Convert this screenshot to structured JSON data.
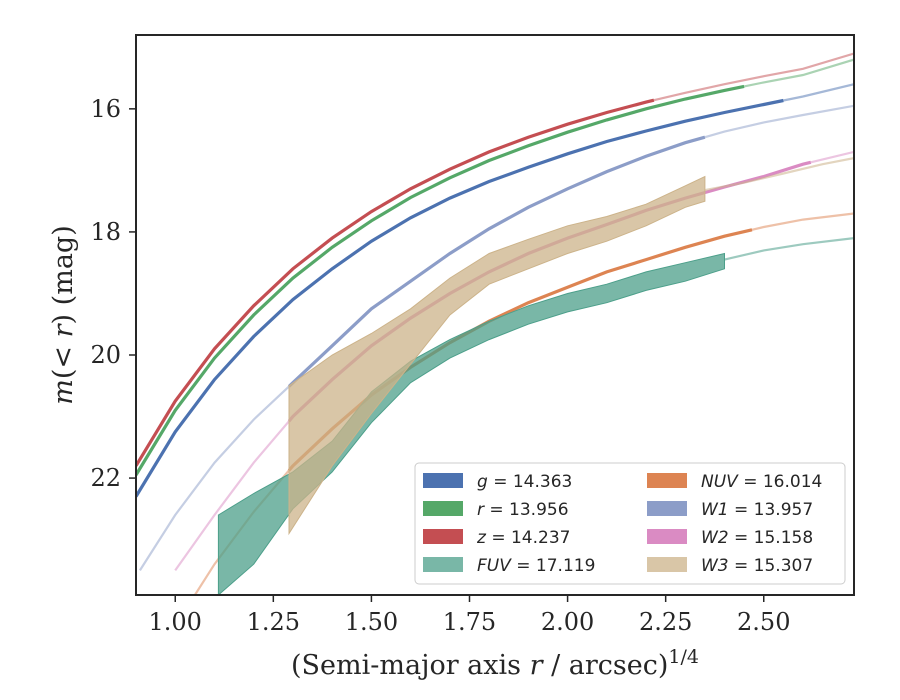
{
  "chart_data": {
    "type": "line",
    "xlabel": "(Semi-major axis r / arcsec)^{1/4}",
    "ylabel": "m(< r) (mag)",
    "xlim": [
      0.9,
      2.73
    ],
    "ylim": [
      23.9,
      14.8
    ],
    "y_inverted": true,
    "xticks": [
      "1.00",
      "1.25",
      "1.50",
      "1.75",
      "2.00",
      "2.25",
      "2.50"
    ],
    "xtick_values": [
      1.0,
      1.25,
      1.5,
      1.75,
      2.0,
      2.25,
      2.5
    ],
    "yticks": [
      "16",
      "18",
      "20",
      "22"
    ],
    "ytick_values": [
      16,
      18,
      20,
      22
    ],
    "grid": false,
    "legend_position": "lower-right",
    "series": [
      {
        "name": "g = 14.363",
        "label_prefix": "g",
        "label_value": "14.363",
        "color": "#4c72b0",
        "kind": "line",
        "x": [
          0.9,
          1.0,
          1.1,
          1.2,
          1.3,
          1.4,
          1.5,
          1.6,
          1.7,
          1.8,
          1.9,
          2.0,
          2.1,
          2.2,
          2.3,
          2.4,
          2.5,
          2.6,
          2.73
        ],
        "y": [
          22.3,
          21.25,
          20.4,
          19.7,
          19.1,
          18.6,
          18.15,
          17.77,
          17.45,
          17.18,
          16.95,
          16.73,
          16.53,
          16.36,
          16.2,
          16.06,
          15.93,
          15.8,
          15.6
        ],
        "solid_max_x": 2.55
      },
      {
        "name": "r = 13.956",
        "label_prefix": "r",
        "label_value": "13.956",
        "color": "#55a868",
        "kind": "line",
        "x": [
          0.9,
          1.0,
          1.1,
          1.2,
          1.3,
          1.4,
          1.5,
          1.6,
          1.7,
          1.8,
          1.9,
          2.0,
          2.1,
          2.2,
          2.3,
          2.4,
          2.5,
          2.6,
          2.73
        ],
        "y": [
          21.95,
          20.9,
          20.05,
          19.35,
          18.75,
          18.25,
          17.82,
          17.44,
          17.12,
          16.84,
          16.6,
          16.38,
          16.18,
          16.0,
          15.84,
          15.7,
          15.57,
          15.45,
          15.2
        ],
        "solid_max_x": 2.45
      },
      {
        "name": "z = 14.237",
        "label_prefix": "z",
        "label_value": "14.237",
        "color": "#c44e52",
        "kind": "line",
        "x": [
          0.9,
          1.0,
          1.1,
          1.2,
          1.3,
          1.4,
          1.5,
          1.6,
          1.7,
          1.8,
          1.9,
          2.0,
          2.1,
          2.2,
          2.3,
          2.4,
          2.5,
          2.6,
          2.73
        ],
        "y": [
          21.8,
          20.75,
          19.9,
          19.2,
          18.6,
          18.1,
          17.67,
          17.3,
          16.98,
          16.7,
          16.46,
          16.25,
          16.06,
          15.89,
          15.74,
          15.6,
          15.47,
          15.35,
          15.1
        ],
        "solid_max_x": 2.22
      },
      {
        "name": "FUV = 17.119",
        "label_prefix": "FUV",
        "label_value": "17.119",
        "color": "#4c9f8a",
        "kind": "band",
        "x": [
          1.11,
          1.2,
          1.3,
          1.4,
          1.5,
          1.6,
          1.7,
          1.8,
          1.9,
          2.0,
          2.1,
          2.2,
          2.3,
          2.4
        ],
        "y_upper": [
          22.6,
          22.25,
          21.9,
          21.4,
          20.6,
          20.1,
          19.75,
          19.45,
          19.2,
          19.0,
          18.85,
          18.65,
          18.5,
          18.35
        ],
        "y_lower": [
          23.9,
          23.4,
          22.5,
          21.9,
          21.1,
          20.45,
          20.05,
          19.75,
          19.5,
          19.3,
          19.15,
          18.95,
          18.8,
          18.6
        ],
        "ext_x": [
          2.4,
          2.5,
          2.6,
          2.73
        ],
        "ext_y": [
          18.45,
          18.3,
          18.2,
          18.1
        ]
      },
      {
        "name": "NUV = 16.014",
        "label_prefix": "NUV",
        "label_value": "16.014",
        "color": "#dd8452",
        "kind": "line",
        "x": [
          1.05,
          1.1,
          1.2,
          1.3,
          1.4,
          1.5,
          1.6,
          1.7,
          1.8,
          1.9,
          2.0,
          2.1,
          2.2,
          2.3,
          2.4,
          2.5,
          2.6,
          2.73
        ],
        "y": [
          23.9,
          23.4,
          22.55,
          21.8,
          21.2,
          20.65,
          20.2,
          19.8,
          19.45,
          19.15,
          18.9,
          18.65,
          18.45,
          18.25,
          18.07,
          17.92,
          17.8,
          17.7
        ],
        "solid_min_x": 1.29,
        "solid_max_x": 2.47
      },
      {
        "name": "W1 = 13.957",
        "label_prefix": "W1",
        "label_value": "13.957",
        "color": "#8c9dc8",
        "kind": "line",
        "x": [
          0.91,
          1.0,
          1.1,
          1.2,
          1.3,
          1.4,
          1.5,
          1.6,
          1.7,
          1.8,
          1.9,
          2.0,
          2.1,
          2.2,
          2.3,
          2.4,
          2.5,
          2.6,
          2.73
        ],
        "y": [
          23.5,
          22.6,
          21.75,
          21.05,
          20.45,
          19.85,
          19.25,
          18.8,
          18.35,
          17.95,
          17.6,
          17.3,
          17.02,
          16.77,
          16.55,
          16.37,
          16.22,
          16.1,
          15.95
        ],
        "solid_min_x": 1.29,
        "solid_max_x": 2.35
      },
      {
        "name": "W2 = 15.158",
        "label_prefix": "W2",
        "label_value": "15.158",
        "color": "#da8bc3",
        "kind": "line",
        "x": [
          1.0,
          1.1,
          1.2,
          1.3,
          1.4,
          1.5,
          1.6,
          1.7,
          1.8,
          1.9,
          2.0,
          2.1,
          2.2,
          2.3,
          2.4,
          2.5,
          2.6,
          2.73
        ],
        "y": [
          23.5,
          22.6,
          21.75,
          21.0,
          20.4,
          19.85,
          19.4,
          19.0,
          18.65,
          18.35,
          18.1,
          17.88,
          17.65,
          17.45,
          17.27,
          17.1,
          16.9,
          16.7
        ],
        "solid_min_x": 1.29,
        "solid_max_x": 2.62
      },
      {
        "name": "W3 = 15.307",
        "label_prefix": "W3",
        "label_value": "15.307",
        "color": "#ccb38a",
        "kind": "band",
        "x": [
          1.29,
          1.4,
          1.5,
          1.6,
          1.7,
          1.8,
          1.9,
          2.0,
          2.1,
          2.2,
          2.3,
          2.35
        ],
        "y_upper": [
          20.5,
          20.0,
          19.65,
          19.25,
          18.75,
          18.35,
          18.12,
          17.9,
          17.75,
          17.55,
          17.25,
          17.1
        ],
        "y_lower": [
          22.9,
          21.8,
          20.95,
          20.15,
          19.35,
          18.85,
          18.6,
          18.35,
          18.15,
          17.9,
          17.6,
          17.5
        ],
        "ext_x": [
          2.35,
          2.45,
          2.55,
          2.65,
          2.73
        ],
        "ext_y": [
          17.32,
          17.2,
          17.05,
          16.9,
          16.8
        ]
      }
    ]
  }
}
